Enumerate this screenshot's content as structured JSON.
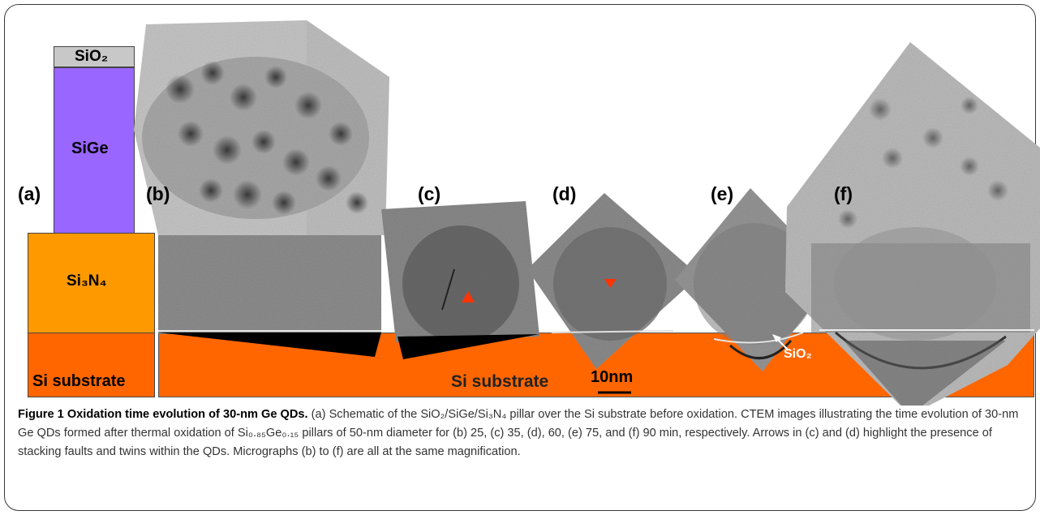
{
  "figure": {
    "schematic": {
      "label": "(a)",
      "layers": {
        "sio2": "SiO₂",
        "sige": "SiGe",
        "si3n4": "Si₃N₄",
        "substrate": "Si substrate"
      },
      "colors": {
        "sio2": "#c8c8c8",
        "sige": "#9966ff",
        "si3n4": "#ff9900",
        "substrate": "#ff6600"
      }
    },
    "panels": {
      "b": "(b)",
      "c": "(c)",
      "d": "(d)",
      "e": "(e)",
      "f": "(f)"
    },
    "substrate_label": "Si substrate",
    "scale_bar": "10nm",
    "sio2_arrow_label": "SiO₂"
  },
  "caption": {
    "title": "Figure 1 Oxidation time evolution of 30-nm Ge QDs.",
    "text": "(a) Schematic of the SiO₂/SiGe/Si₃N₄ pillar over the Si substrate before oxidation. CTEM images illustrating the time evolution of 30-nm Ge QDs formed after thermal oxidation of Si₀.₈₅Ge₀.₁₅ pillars of 50-nm diameter for (b) 25, (c) 35, (d), 60, (e) 75, and (f) 90 min, respectively. Arrows in (c) and (d) highlight the presence of stacking faults and twins within the QDs. Micrographs (b) to (f) are all at the same magnification."
  }
}
